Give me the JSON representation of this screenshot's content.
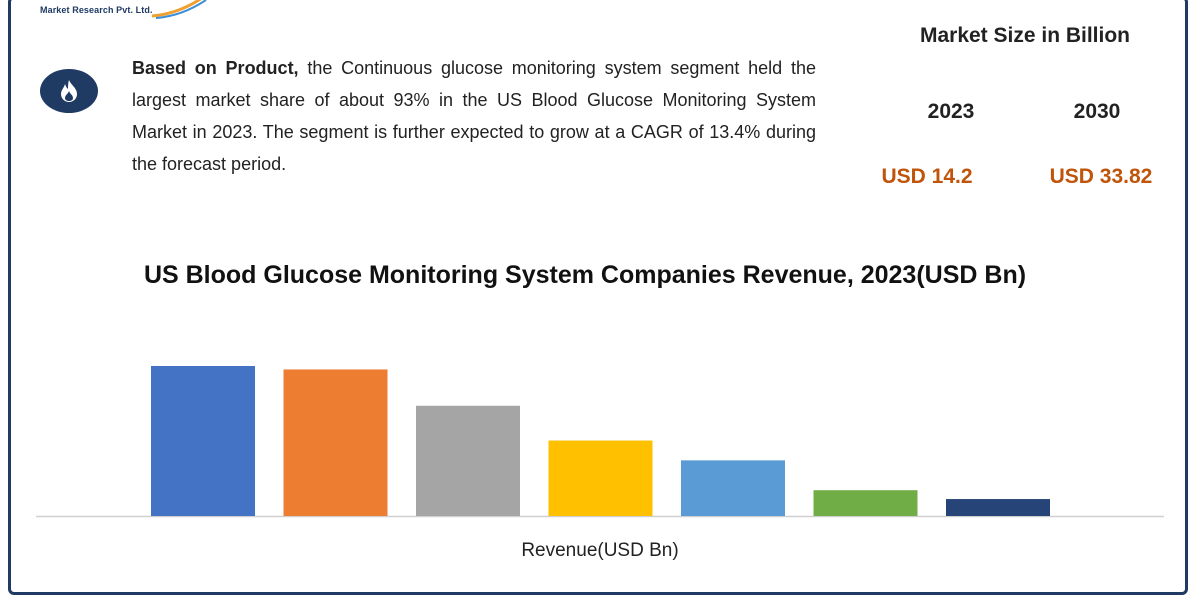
{
  "logo": {
    "caption": "Market Research Pvt. Ltd."
  },
  "summary": {
    "icon": "flame-icon",
    "lead": "Based on Product,",
    "body": " the Continuous glucose monitoring system segment held the largest market share of about 93% in the US Blood Glucose Monitoring System Market in 2023. The segment is further expected to grow at a CAGR of 13.4% during the forecast period."
  },
  "market_size": {
    "title": "Market Size in Billion",
    "year_1": "2023",
    "year_2": "2030",
    "value_1": "USD 14.2",
    "value_2": "USD 33.82"
  },
  "chart_data": {
    "type": "bar",
    "title": "US Blood Glucose Monitoring System Companies Revenue, 2023(USD Bn)",
    "xlabel": "Revenue(USD Bn)",
    "ylabel": "",
    "ylim": [
      0,
      100
    ],
    "grid": false,
    "categories": [
      "",
      "",
      "",
      "",
      "",
      "",
      ""
    ],
    "values": [
      100,
      97.7,
      73.5,
      50.3,
      37.1,
      17.2,
      11.3
    ],
    "colors": [
      "#4472c4",
      "#ed7d31",
      "#a5a5a5",
      "#ffc000",
      "#5b9bd5",
      "#70ad47",
      "#264478"
    ]
  }
}
